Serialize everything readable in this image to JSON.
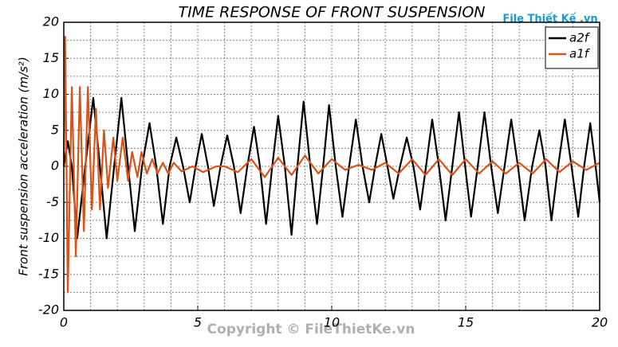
{
  "chart_data": {
    "type": "line",
    "title": "TIME RESPONSE OF FRONT SUSPENSION",
    "ylabel": "Front suspension acceleration (m/s²)",
    "xlim": [
      0,
      20
    ],
    "ylim": [
      -20,
      20
    ],
    "xticks": [
      0,
      5,
      10,
      15,
      20
    ],
    "yticks": [
      -20,
      -15,
      -10,
      -5,
      0,
      5,
      10,
      15,
      20
    ],
    "xminorticks": [
      1,
      2,
      3,
      4,
      6,
      7,
      8,
      9,
      11,
      12,
      13,
      14,
      16,
      17,
      18,
      19
    ],
    "yminorticks": [
      -17.5,
      -12.5,
      -7.5,
      -2.5,
      2.5,
      7.5,
      12.5,
      17.5
    ],
    "grid": true,
    "legend": "upper right",
    "watermark": "Copyright © FileThietKe.vn",
    "logo": "File Thiết Kế .vn",
    "series": [
      {
        "name": "a2f",
        "color": "#000000",
        "x": [
          0,
          0.15,
          0.3,
          0.5,
          0.8,
          1.1,
          1.35,
          1.6,
          1.88,
          2.15,
          2.4,
          2.65,
          2.92,
          3.2,
          3.45,
          3.7,
          3.95,
          4.2,
          4.45,
          4.7,
          4.92,
          5.15,
          5.38,
          5.6,
          5.85,
          6.1,
          6.35,
          6.6,
          6.85,
          7.1,
          7.32,
          7.55,
          7.78,
          8.0,
          8.25,
          8.5,
          8.72,
          8.95,
          9.2,
          9.45,
          9.68,
          9.9,
          10.15,
          10.4,
          10.65,
          10.9,
          11.15,
          11.4,
          11.62,
          11.85,
          12.08,
          12.3,
          12.55,
          12.8,
          13.05,
          13.3,
          13.52,
          13.75,
          14.0,
          14.25,
          14.5,
          14.75,
          14.98,
          15.2,
          15.45,
          15.7,
          15.95,
          16.2,
          16.45,
          16.7,
          16.95,
          17.2,
          17.48,
          17.75,
          17.98,
          18.2,
          18.45,
          18.7,
          18.95,
          19.2,
          19.42,
          19.65,
          19.85,
          20
        ],
        "values": [
          0,
          3.5,
          0,
          -10,
          0,
          9.5,
          0,
          -10,
          0,
          9.5,
          0,
          -9,
          0,
          6,
          0,
          -8,
          0,
          4,
          0,
          -5,
          0,
          4.5,
          0,
          -5.5,
          0,
          4.3,
          0,
          -6.5,
          0,
          5.5,
          0,
          -8,
          0,
          7,
          0,
          -9.5,
          0,
          9,
          0,
          -8,
          0,
          8.5,
          0,
          -7,
          0,
          6.5,
          0,
          -5,
          0,
          4.5,
          0,
          -4.5,
          0,
          4,
          0,
          -6,
          0,
          6.5,
          0,
          -7.5,
          0,
          7.5,
          0,
          -7,
          0,
          7.5,
          0,
          -6.5,
          0,
          6.5,
          0,
          -7.5,
          0,
          5,
          0,
          -7.5,
          0,
          6.5,
          0,
          -7,
          0,
          6,
          0,
          -5
        ]
      },
      {
        "name": "a1f",
        "color": "#d95319",
        "x": [
          0,
          0.05,
          0.15,
          0.3,
          0.45,
          0.6,
          0.75,
          0.9,
          1.05,
          1.2,
          1.35,
          1.5,
          1.65,
          1.85,
          2.0,
          2.2,
          2.4,
          2.55,
          2.75,
          2.9,
          3.1,
          3.3,
          3.5,
          3.7,
          3.9,
          4.1,
          4.4,
          4.8,
          5.2,
          5.7,
          6.0,
          6.5,
          7.0,
          7.5,
          8.0,
          8.5,
          9.0,
          9.5,
          10.0,
          10.5,
          11.0,
          11.5,
          12.0,
          12.5,
          13.0,
          13.5,
          14.0,
          14.5,
          15.0,
          15.5,
          16.0,
          16.5,
          17.0,
          17.5,
          18.0,
          18.5,
          19.0,
          19.5,
          20
        ],
        "values": [
          0,
          18,
          -17.5,
          11,
          -12.5,
          11,
          -9,
          11,
          -6,
          8,
          -6,
          5,
          -3,
          4,
          -2,
          4,
          -2,
          2,
          -1.5,
          2,
          -1,
          1,
          -1,
          0.5,
          -1,
          0.5,
          -0.7,
          0,
          -0.8,
          0,
          0,
          -0.8,
          1,
          -1.5,
          1.2,
          -1.2,
          1.5,
          -1,
          1,
          -0.5,
          0.2,
          -0.5,
          0.5,
          -1,
          1,
          -1.2,
          1,
          -1.2,
          1,
          -1,
          0.7,
          -1,
          0.5,
          -1,
          1,
          -0.8,
          0.7,
          -0.5,
          0.5
        ]
      }
    ]
  }
}
